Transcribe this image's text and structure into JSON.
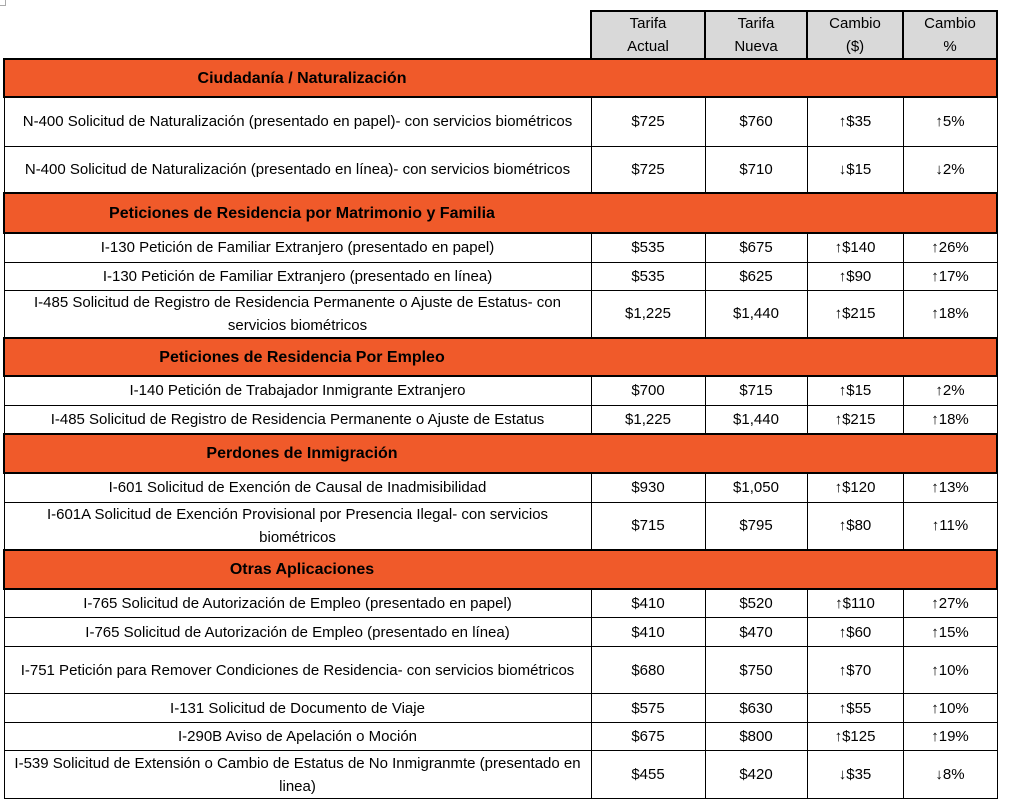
{
  "headers": [
    "Tarifa\nActual",
    "Tarifa\nNueva",
    "Cambio\n($)",
    "Cambio\n%"
  ],
  "colors": {
    "section": "#f05a2a",
    "header": "#d9d9d9"
  },
  "sections": [
    {
      "title": "Ciudadanía / Naturalización",
      "rows": [
        {
          "desc": "N-400 Solicitud de Naturalización (presentado en papel)- con servicios biométricos",
          "actual": "$725",
          "nueva": "$760",
          "cambio": "↑$35",
          "pct": "↑5%"
        },
        {
          "desc": "N-400 Solicitud de Naturalización (presentado en línea)- con servicios biométricos",
          "actual": "$725",
          "nueva": "$710",
          "cambio": "↓$15",
          "pct": "↓2%"
        }
      ]
    },
    {
      "title": "Peticiones de Residencia por Matrimonio y Familia",
      "rows": [
        {
          "desc": "I-130 Petición de Familiar Extranjero (presentado en papel)",
          "actual": "$535",
          "nueva": "$675",
          "cambio": "↑$140",
          "pct": "↑26%"
        },
        {
          "desc": "I-130 Petición de Familiar Extranjero (presentado en línea)",
          "actual": "$535",
          "nueva": "$625",
          "cambio": "↑$90",
          "pct": "↑17%"
        },
        {
          "desc": "I-485 Solicitud de Registro de Residencia Permanente o Ajuste de Estatus- con servicios biométricos",
          "actual": "$1,225",
          "nueva": "$1,440",
          "cambio": "↑$215",
          "pct": "↑18%"
        }
      ]
    },
    {
      "title": "Peticiones de Residencia Por Empleo",
      "rows": [
        {
          "desc": "I-140 Petición de Trabajador Inmigrante Extranjero",
          "actual": "$700",
          "nueva": "$715",
          "cambio": "↑$15",
          "pct": "↑2%"
        },
        {
          "desc": "I-485 Solicitud de Registro de Residencia Permanente o Ajuste de Estatus",
          "actual": "$1,225",
          "nueva": "$1,440",
          "cambio": "↑$215",
          "pct": "↑18%"
        }
      ]
    },
    {
      "title": "Perdones de Inmigración",
      "rows": [
        {
          "desc": "I-601 Solicitud de Exención de Causal de Inadmisibilidad",
          "actual": "$930",
          "nueva": "$1,050",
          "cambio": "↑$120",
          "pct": "↑13%"
        },
        {
          "desc": "I-601A Solicitud de Exención Provisional por Presencia Ilegal- con servicios biométricos",
          "actual": "$715",
          "nueva": "$795",
          "cambio": "↑$80",
          "pct": "↑11%"
        }
      ]
    },
    {
      "title": "Otras Aplicaciones",
      "rows": [
        {
          "desc": "I-765 Solicitud de Autorización de Empleo (presentado en papel)",
          "actual": "$410",
          "nueva": "$520",
          "cambio": "↑$110",
          "pct": "↑27%"
        },
        {
          "desc": "I-765 Solicitud de Autorización de Empleo (presentado en línea)",
          "actual": "$410",
          "nueva": "$470",
          "cambio": "↑$60",
          "pct": "↑15%"
        },
        {
          "desc": "I-751 Petición para Remover Condiciones de Residencia- con servicios biométricos",
          "actual": "$680",
          "nueva": "$750",
          "cambio": "↑$70",
          "pct": "↑10%"
        },
        {
          "desc": "I-131 Solicitud de Documento de Viaje",
          "actual": "$575",
          "nueva": "$630",
          "cambio": "↑$55",
          "pct": "↑10%"
        },
        {
          "desc": "I-290B Aviso de Apelación o Moción",
          "actual": "$675",
          "nueva": "$800",
          "cambio": "↑$125",
          "pct": "↑19%"
        },
        {
          "desc": "I-539 Solicitud de Extensión o Cambio de Estatus de No Inmigranmte (presentado en linea)",
          "actual": "$455",
          "nueva": "$420",
          "cambio": "↓$35",
          "pct": "↓8%"
        }
      ]
    }
  ]
}
